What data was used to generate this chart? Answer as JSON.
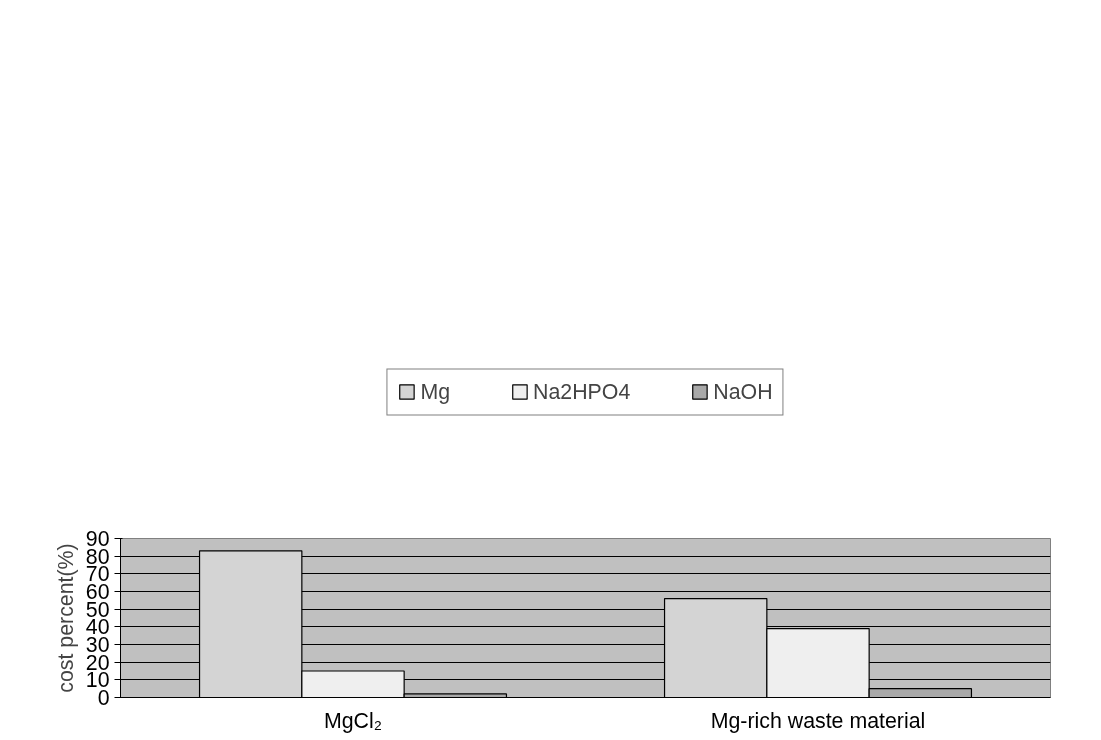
{
  "chart_data": {
    "type": "bar",
    "categories": [
      "MgCl₂",
      "Mg-rich waste material"
    ],
    "ylabel": "cost percent(%)",
    "series": [
      {
        "name": "Mg",
        "color": "#d4d4d4",
        "values": [
          83,
          56
        ]
      },
      {
        "name": "Na2HPO4",
        "color": "#efefef",
        "values": [
          15,
          39
        ]
      },
      {
        "name": "NaOH",
        "color": "#a9a9a9",
        "values": [
          2,
          5
        ]
      }
    ],
    "ylim": [
      0,
      90
    ],
    "yticks": [
      0,
      10,
      20,
      30,
      40,
      50,
      60,
      70,
      80,
      90
    ],
    "grid": "y",
    "legend": "top"
  }
}
